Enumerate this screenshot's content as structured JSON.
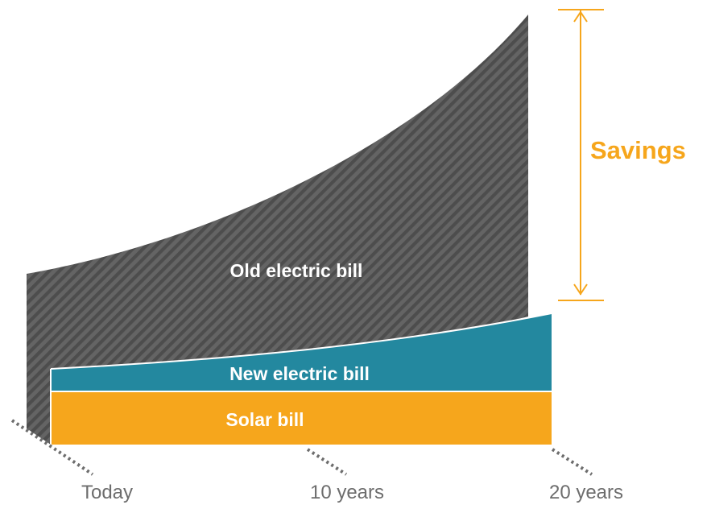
{
  "chart_data": {
    "type": "area",
    "categories": [
      "Today",
      "10 years",
      "20 years"
    ],
    "series": [
      {
        "name": "Old electric bill",
        "color": "#5a5a5a",
        "pattern": "diagonal-stripes"
      },
      {
        "name": "New electric bill",
        "color": "#23889f"
      },
      {
        "name": "Solar bill",
        "color": "#f6a61c"
      }
    ],
    "annotation": {
      "label": "Savings",
      "color": "#f6a61c"
    }
  }
}
